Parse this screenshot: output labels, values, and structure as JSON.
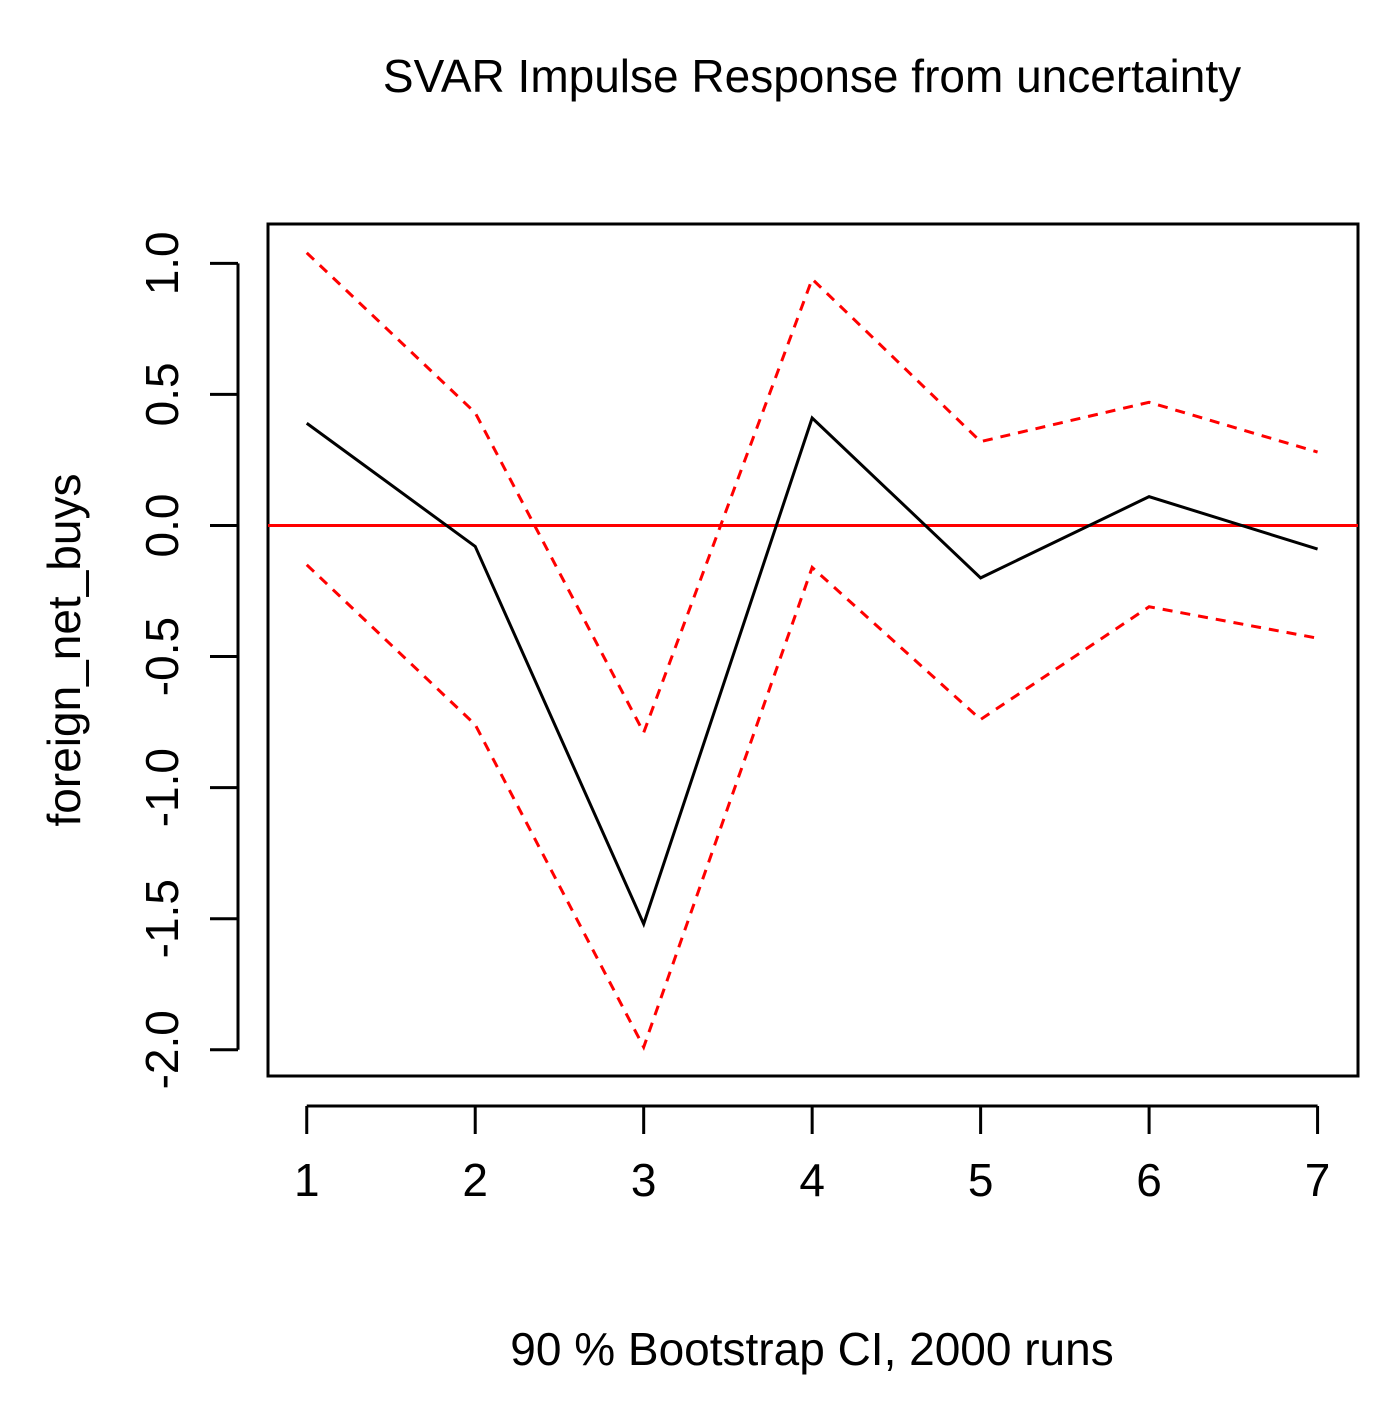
{
  "chart_data": {
    "type": "line",
    "title": "SVAR Impulse Response from uncertainty",
    "xlabel": "90 % Bootstrap CI,  2000 runs",
    "ylabel": "foreign_net_buys",
    "x": [
      1,
      2,
      3,
      4,
      5,
      6,
      7
    ],
    "xticks": [
      "1",
      "2",
      "3",
      "4",
      "5",
      "6",
      "7"
    ],
    "yticks": [
      "-2.0",
      "-1.5",
      "-1.0",
      "-0.5",
      "0.0",
      "0.5",
      "1.0"
    ],
    "ytick_values": [
      -2.0,
      -1.5,
      -1.0,
      -0.5,
      0.0,
      0.5,
      1.0
    ],
    "xlim": [
      0.77,
      7.24
    ],
    "ylim": [
      -2.1,
      1.15
    ],
    "grid": false,
    "series": [
      {
        "role": "response",
        "style": "solid",
        "color": "#000000",
        "values": [
          0.39,
          -0.08,
          -1.52,
          0.41,
          -0.2,
          0.11,
          -0.09
        ]
      },
      {
        "role": "upper",
        "style": "dashed",
        "color": "#ff0000",
        "values": [
          1.04,
          0.43,
          -0.79,
          0.94,
          0.32,
          0.47,
          0.28
        ]
      },
      {
        "role": "lower",
        "style": "dashed",
        "color": "#ff0000",
        "values": [
          -0.15,
          -0.76,
          -1.99,
          -0.16,
          -0.74,
          -0.31,
          -0.43
        ]
      }
    ],
    "reference_line": {
      "y": 0.0,
      "color": "#ff0000",
      "style": "solid"
    }
  }
}
